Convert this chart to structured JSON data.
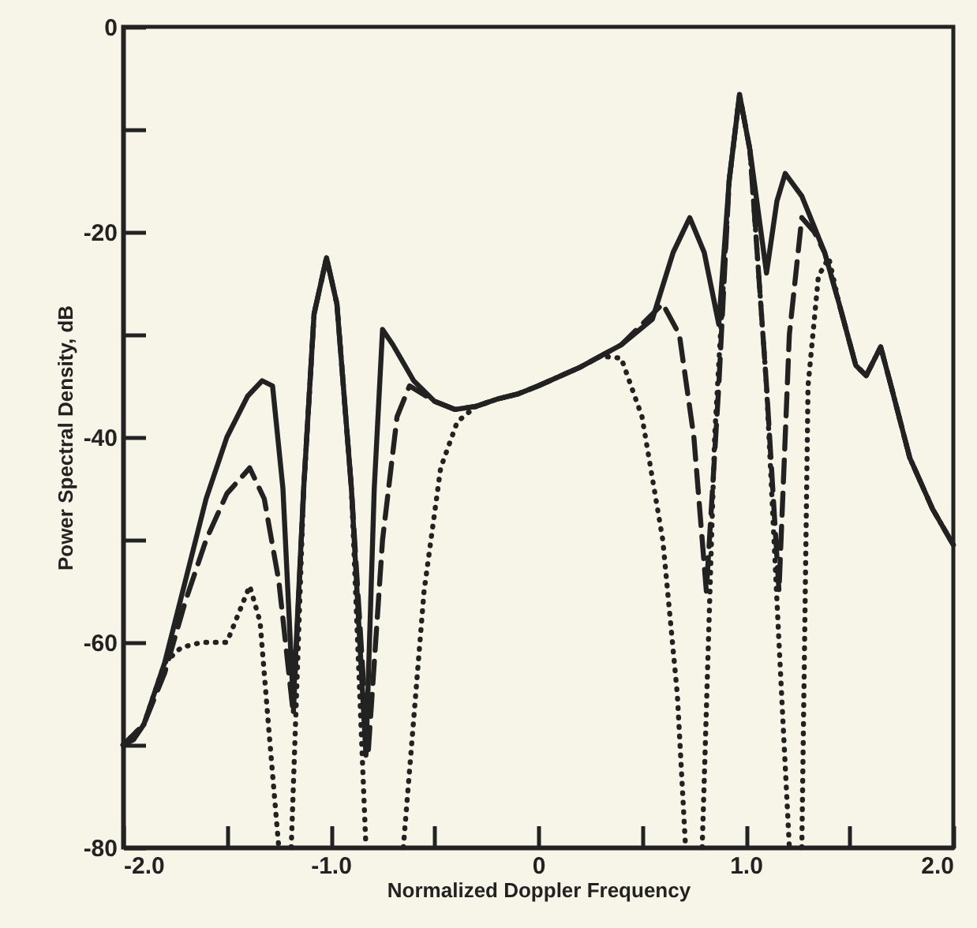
{
  "chart_data": {
    "type": "line",
    "xlabel": "Normalized Doppler Frequency",
    "ylabel": "Power Spectral Density, dB",
    "xlim": [
      -2,
      2
    ],
    "ylim": [
      -80,
      0
    ],
    "xticks": [
      {
        "value": -2,
        "label": "-2.0"
      },
      {
        "value": -1.5,
        "label": null
      },
      {
        "value": -1,
        "label": "-1.0"
      },
      {
        "value": -0.5,
        "label": null
      },
      0,
      {
        "value": 0.5,
        "label": null
      },
      {
        "value": 1,
        "label": "1.0"
      },
      {
        "value": 1.5,
        "label": null
      },
      {
        "value": 2,
        "label": "2.0"
      }
    ],
    "yticks": [
      -80,
      {
        "value": -70,
        "label": null
      },
      -60,
      {
        "value": -50,
        "label": null
      },
      -40,
      {
        "value": -30,
        "label": null
      },
      -20,
      {
        "value": -10,
        "label": null
      },
      0
    ],
    "grid": false,
    "series": [
      {
        "color": "#222222",
        "line_style": "solid",
        "x": [
          -2,
          -1.95,
          -1.9,
          -1.8,
          -1.7,
          -1.6,
          -1.5,
          -1.4,
          -1.33,
          -1.28,
          -1.23,
          -1.18,
          -1.13,
          -1.08,
          -1.02,
          -0.97,
          -0.9,
          -0.83,
          -0.79,
          -0.75,
          -0.7,
          -0.6,
          -0.5,
          -0.4,
          -0.3,
          -0.2,
          -0.1,
          0,
          0.2,
          0.4,
          0.55,
          0.65,
          0.73,
          0.8,
          0.87,
          0.92,
          0.97,
          1.02,
          1.1,
          1.15,
          1.19,
          1.27,
          1.38,
          1.45,
          1.53,
          1.58,
          1.65,
          1.7,
          1.79,
          1.9,
          2
        ],
        "values": [
          -70,
          -69.5,
          -68,
          -62,
          -54,
          -46,
          -40,
          -36,
          -34.5,
          -35,
          -45,
          -66,
          -45,
          -28,
          -22.5,
          -27,
          -45,
          -71,
          -45,
          -29.5,
          -31,
          -34.5,
          -36.5,
          -37.3,
          -37,
          -36.3,
          -35.8,
          -35,
          -33.2,
          -31,
          -28.5,
          -22,
          -18.6,
          -22,
          -29,
          -15,
          -6.6,
          -12,
          -24,
          -17,
          -14.3,
          -16.5,
          -22,
          -27,
          -33,
          -34,
          -31.2,
          -35,
          -42,
          -47,
          -50.5
        ]
      },
      {
        "color": "#222222",
        "line_style": "dashed",
        "x": [
          -2,
          -1.9,
          -1.8,
          -1.7,
          -1.6,
          -1.5,
          -1.39,
          -1.32,
          -1.25,
          -1.18,
          -1.13,
          -1.08,
          -1.02,
          -0.97,
          -0.9,
          -0.82,
          -0.75,
          -0.68,
          -0.62,
          -0.5,
          -0.4,
          -0.3,
          -0.2,
          -0.1,
          0,
          0.2,
          0.4,
          0.5,
          0.6,
          0.68,
          0.75,
          0.81,
          0.87,
          0.92,
          0.97,
          1.02,
          1.1,
          1.16,
          1.21,
          1.27,
          1.33,
          1.38,
          1.45,
          1.53,
          1.58,
          1.65,
          1.7,
          1.79,
          1.9,
          2
        ],
        "values": [
          -70,
          -68,
          -63,
          -56,
          -50,
          -45.5,
          -43,
          -46,
          -54,
          -67,
          -45,
          -28,
          -22.5,
          -27,
          -45,
          -71,
          -50,
          -38,
          -35,
          -36.5,
          -37.3,
          -37,
          -36.3,
          -35.8,
          -35,
          -33.2,
          -31,
          -29,
          -27,
          -30,
          -40,
          -55,
          -35,
          -15,
          -6.6,
          -12,
          -35,
          -55,
          -30,
          -18.6,
          -20,
          -22,
          -27,
          -33,
          -34,
          -31.2,
          -35,
          -42,
          -47,
          -50.5
        ]
      },
      {
        "color": "#222222",
        "line_style": "dotted",
        "x": [
          -2,
          -1.9,
          -1.8,
          -1.72,
          -1.62,
          -1.5,
          -1.45,
          -1.39,
          -1.34,
          -1.3,
          -1.25,
          -1.22,
          -1.19,
          -1.13,
          -1.08,
          -1.02,
          -0.97,
          -0.9,
          -0.83,
          -0.74,
          -0.65,
          -0.55,
          -0.47,
          -0.39,
          -0.3,
          -0.2,
          -0.1,
          0,
          0.2,
          0.3,
          0.4,
          0.5,
          0.6,
          0.67,
          0.71,
          0.75,
          0.79,
          0.85,
          0.92,
          0.97,
          1.02,
          1.1,
          1.16,
          1.21,
          1.24,
          1.27,
          1.3,
          1.35,
          1.4,
          1.45,
          1.53,
          1.58,
          1.65,
          1.7,
          1.79,
          1.9,
          2
        ],
        "values": [
          -70,
          -68,
          -62,
          -60.5,
          -60,
          -60,
          -57.5,
          -54.5,
          -58,
          -68,
          -80,
          null,
          -80,
          -45,
          -28,
          -22.5,
          -27,
          -45,
          -80,
          null,
          -80,
          -55,
          -43,
          -38.5,
          -37,
          -36.3,
          -35.8,
          -35,
          -33.2,
          -32.1,
          -32.3,
          -38,
          -50,
          -65,
          -80,
          null,
          -80,
          -40,
          -15,
          -6.6,
          -12,
          -35,
          -60,
          -80,
          null,
          -80,
          -35,
          -24.3,
          -22.5,
          -27,
          -33,
          -34,
          -31.2,
          -35,
          -42,
          -47,
          -50.5
        ]
      }
    ]
  }
}
